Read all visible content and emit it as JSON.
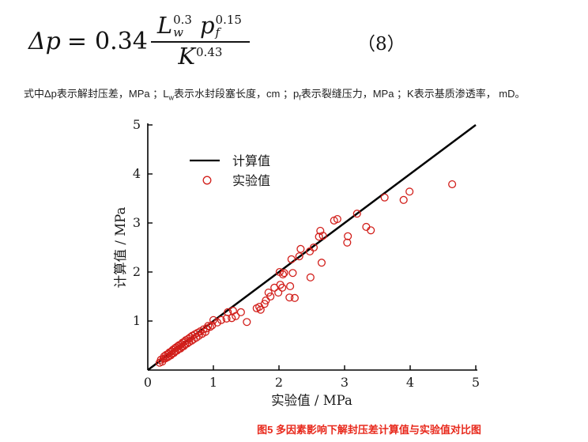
{
  "formula": {
    "lhs_delta": "Δ",
    "lhs_var": "p",
    "equals": "=",
    "coefficient": "0.34",
    "num_var1": "L",
    "num_sub1": "w",
    "num_sup1": "0.3",
    "num_var2": "p",
    "num_sub2": "f",
    "num_sup2": "0.15",
    "den_var": "K",
    "den_sup": "0.43",
    "eq_number": "（8）"
  },
  "note": {
    "seg1": "式中Δp表示解封压差，MPa ；L",
    "sub1": "w",
    "seg2": "表示水封段塞长度，cm ；p",
    "sub2": "f",
    "seg3": "表示裂缝压力，MPa ；K表示基质渗透率， mD。"
  },
  "caption": "图5 多因素影响下解封压差计算值与实验值对比图",
  "chart_data": {
    "type": "scatter",
    "title": "",
    "xlabel": "实验值 / MPa",
    "ylabel": "计算值 / MPa",
    "xlim": [
      0,
      5
    ],
    "ylim": [
      0,
      5
    ],
    "x_ticks": [
      0,
      1,
      2,
      3,
      4,
      5
    ],
    "y_ticks": [
      1,
      2,
      3,
      4,
      5
    ],
    "grid": false,
    "legend_position": "upper-left-inside",
    "axis_color": "#000000",
    "series": [
      {
        "name": "计算值",
        "type": "line",
        "color": "#000000",
        "points": [
          [
            0,
            0
          ],
          [
            5,
            5
          ]
        ]
      },
      {
        "name": "实验值",
        "type": "scatter",
        "marker": "open-circle",
        "color": "#d21f1b",
        "points": [
          [
            0.18,
            0.15
          ],
          [
            0.2,
            0.21
          ],
          [
            0.22,
            0.17
          ],
          [
            0.24,
            0.23
          ],
          [
            0.25,
            0.28
          ],
          [
            0.27,
            0.24
          ],
          [
            0.28,
            0.31
          ],
          [
            0.3,
            0.26
          ],
          [
            0.31,
            0.33
          ],
          [
            0.32,
            0.28
          ],
          [
            0.33,
            0.36
          ],
          [
            0.35,
            0.3
          ],
          [
            0.36,
            0.38
          ],
          [
            0.37,
            0.33
          ],
          [
            0.38,
            0.41
          ],
          [
            0.4,
            0.35
          ],
          [
            0.41,
            0.44
          ],
          [
            0.42,
            0.38
          ],
          [
            0.43,
            0.46
          ],
          [
            0.45,
            0.4
          ],
          [
            0.46,
            0.49
          ],
          [
            0.47,
            0.43
          ],
          [
            0.48,
            0.51
          ],
          [
            0.5,
            0.44
          ],
          [
            0.51,
            0.53
          ],
          [
            0.52,
            0.47
          ],
          [
            0.53,
            0.56
          ],
          [
            0.55,
            0.49
          ],
          [
            0.56,
            0.58
          ],
          [
            0.57,
            0.52
          ],
          [
            0.58,
            0.61
          ],
          [
            0.6,
            0.54
          ],
          [
            0.62,
            0.64
          ],
          [
            0.63,
            0.57
          ],
          [
            0.65,
            0.67
          ],
          [
            0.67,
            0.6
          ],
          [
            0.68,
            0.7
          ],
          [
            0.7,
            0.63
          ],
          [
            0.72,
            0.73
          ],
          [
            0.74,
            0.66
          ],
          [
            0.76,
            0.76
          ],
          [
            0.78,
            0.7
          ],
          [
            0.8,
            0.79
          ],
          [
            0.83,
            0.74
          ],
          [
            0.85,
            0.83
          ],
          [
            0.88,
            0.78
          ],
          [
            0.9,
            0.85
          ],
          [
            0.95,
            0.88
          ],
          [
            0.92,
            0.9
          ],
          [
            0.98,
            0.91
          ],
          [
            1.0,
            1.02
          ],
          [
            1.06,
            0.97
          ],
          [
            1.12,
            1.02
          ],
          [
            1.2,
            1.05
          ],
          [
            1.22,
            1.18
          ],
          [
            1.28,
            1.06
          ],
          [
            1.3,
            1.21
          ],
          [
            1.34,
            1.1
          ],
          [
            1.42,
            1.18
          ],
          [
            1.51,
            0.98
          ],
          [
            1.66,
            1.26
          ],
          [
            1.7,
            1.29
          ],
          [
            1.72,
            1.23
          ],
          [
            1.78,
            1.35
          ],
          [
            1.8,
            1.42
          ],
          [
            1.84,
            1.58
          ],
          [
            1.87,
            1.5
          ],
          [
            1.93,
            1.68
          ],
          [
            1.99,
            1.58
          ],
          [
            2.01,
            2.0
          ],
          [
            2.02,
            1.74
          ],
          [
            2.05,
            1.68
          ],
          [
            2.06,
            1.95
          ],
          [
            2.08,
            1.98
          ],
          [
            2.16,
            1.48
          ],
          [
            2.17,
            1.71
          ],
          [
            2.19,
            2.26
          ],
          [
            2.21,
            1.98
          ],
          [
            2.24,
            1.47
          ],
          [
            2.31,
            2.32
          ],
          [
            2.33,
            2.47
          ],
          [
            2.47,
            2.42
          ],
          [
            2.48,
            1.89
          ],
          [
            2.53,
            2.5
          ],
          [
            2.61,
            2.72
          ],
          [
            2.63,
            2.84
          ],
          [
            2.65,
            2.19
          ],
          [
            2.67,
            2.74
          ],
          [
            2.84,
            3.05
          ],
          [
            2.89,
            3.08
          ],
          [
            3.04,
            2.6
          ],
          [
            3.05,
            2.73
          ],
          [
            3.19,
            3.19
          ],
          [
            3.33,
            2.92
          ],
          [
            3.4,
            2.85
          ],
          [
            3.61,
            3.52
          ],
          [
            3.9,
            3.47
          ],
          [
            3.99,
            3.64
          ],
          [
            4.64,
            3.79
          ]
        ]
      }
    ]
  }
}
